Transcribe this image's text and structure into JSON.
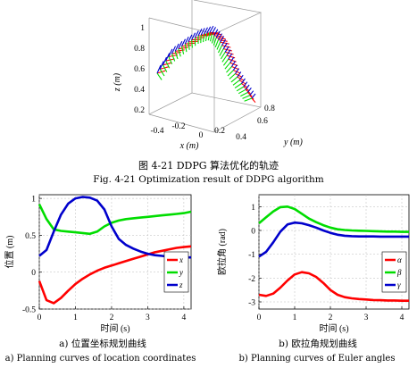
{
  "figure": {
    "caption_cn": "图 4-21 DDPG 算法优化的轨迹",
    "caption_en": "Fig. 4-21 Optimization result of DDPG algorithm"
  },
  "chart_data": [
    {
      "type": "scatter",
      "projection": "3d",
      "xlabel": "x (m)",
      "ylabel": "y (m)",
      "zlabel": "z (m)",
      "x_ticks": [
        "-0.4",
        "-0.2",
        "0",
        "0.2",
        "0.4"
      ],
      "y_ticks": [
        "0.8",
        "0.6"
      ],
      "z_ticks": [
        "0.2",
        "0.4",
        "0.6",
        "0.8",
        "1"
      ],
      "zlim": [
        0.2,
        1.0
      ],
      "series": [
        {
          "name": "x-axis",
          "color": "#ff0000"
        },
        {
          "name": "y-axis",
          "color": "#00dd00"
        },
        {
          "name": "z-axis",
          "color": "#0000cc"
        }
      ]
    },
    {
      "type": "line",
      "caption_cn": "a) 位置坐标规划曲线",
      "caption_en": "a) Planning curves of location coordinates",
      "xlabel": "时间 (s)",
      "ylabel": "位置 (m)",
      "xlim": [
        0,
        4.2
      ],
      "ylim": [
        -0.5,
        1.05
      ],
      "x_ticks": [
        "0",
        "1",
        "2",
        "3",
        "4"
      ],
      "y_ticks": [
        "-0.5",
        "0",
        "0.5",
        "1"
      ],
      "legend_position": "right",
      "x": [
        0,
        0.2,
        0.4,
        0.6,
        0.8,
        1.0,
        1.2,
        1.4,
        1.6,
        1.8,
        2.0,
        2.2,
        2.4,
        2.6,
        2.8,
        3.0,
        3.2,
        3.4,
        3.6,
        3.8,
        4.0,
        4.2
      ],
      "series": [
        {
          "name": "x",
          "color": "#ff0000",
          "values": [
            -0.12,
            -0.38,
            -0.42,
            -0.35,
            -0.25,
            -0.16,
            -0.09,
            -0.03,
            0.02,
            0.06,
            0.09,
            0.12,
            0.15,
            0.18,
            0.21,
            0.24,
            0.27,
            0.29,
            0.31,
            0.33,
            0.34,
            0.35
          ]
        },
        {
          "name": "y",
          "color": "#00dd00",
          "values": [
            0.92,
            0.72,
            0.58,
            0.56,
            0.55,
            0.54,
            0.53,
            0.52,
            0.55,
            0.62,
            0.67,
            0.7,
            0.72,
            0.73,
            0.74,
            0.75,
            0.76,
            0.77,
            0.78,
            0.79,
            0.8,
            0.82
          ]
        },
        {
          "name": "z",
          "color": "#0000cc",
          "values": [
            0.22,
            0.3,
            0.55,
            0.78,
            0.93,
            1.0,
            1.02,
            1.01,
            0.97,
            0.85,
            0.62,
            0.45,
            0.37,
            0.32,
            0.28,
            0.25,
            0.23,
            0.22,
            0.21,
            0.21,
            0.2,
            0.2
          ]
        }
      ]
    },
    {
      "type": "line",
      "caption_cn": "b) 欧拉角规划曲线",
      "caption_en": "b) Planning curves of Euler angles",
      "xlabel": "时间 (s)",
      "ylabel": "欧拉角 (rad)",
      "xlim": [
        0,
        4.2
      ],
      "ylim": [
        -3.3,
        1.5
      ],
      "x_ticks": [
        "0",
        "1",
        "2",
        "3",
        "4"
      ],
      "y_ticks": [
        "-3",
        "-2",
        "-1",
        "0",
        "1"
      ],
      "legend_position": "right",
      "x": [
        0,
        0.2,
        0.4,
        0.6,
        0.8,
        1.0,
        1.2,
        1.4,
        1.6,
        1.8,
        2.0,
        2.2,
        2.4,
        2.6,
        2.8,
        3.0,
        3.2,
        3.4,
        3.6,
        3.8,
        4.0,
        4.2
      ],
      "series": [
        {
          "name": "α",
          "color": "#ff0000",
          "values": [
            -2.7,
            -2.75,
            -2.65,
            -2.4,
            -2.1,
            -1.85,
            -1.75,
            -1.8,
            -1.95,
            -2.2,
            -2.5,
            -2.7,
            -2.8,
            -2.85,
            -2.88,
            -2.9,
            -2.92,
            -2.93,
            -2.94,
            -2.94,
            -2.95,
            -2.95
          ]
        },
        {
          "name": "β",
          "color": "#00dd00",
          "values": [
            0.3,
            0.55,
            0.8,
            0.98,
            1.0,
            0.9,
            0.7,
            0.5,
            0.35,
            0.22,
            0.12,
            0.05,
            0.02,
            0.0,
            -0.01,
            -0.02,
            -0.03,
            -0.04,
            -0.05,
            -0.05,
            -0.06,
            -0.06
          ]
        },
        {
          "name": "γ",
          "color": "#0000cc",
          "values": [
            -1.1,
            -0.9,
            -0.5,
            -0.05,
            0.25,
            0.33,
            0.3,
            0.22,
            0.12,
            0.0,
            -0.1,
            -0.18,
            -0.22,
            -0.24,
            -0.25,
            -0.25,
            -0.25,
            -0.26,
            -0.26,
            -0.26,
            -0.26,
            -0.26
          ]
        }
      ]
    }
  ]
}
